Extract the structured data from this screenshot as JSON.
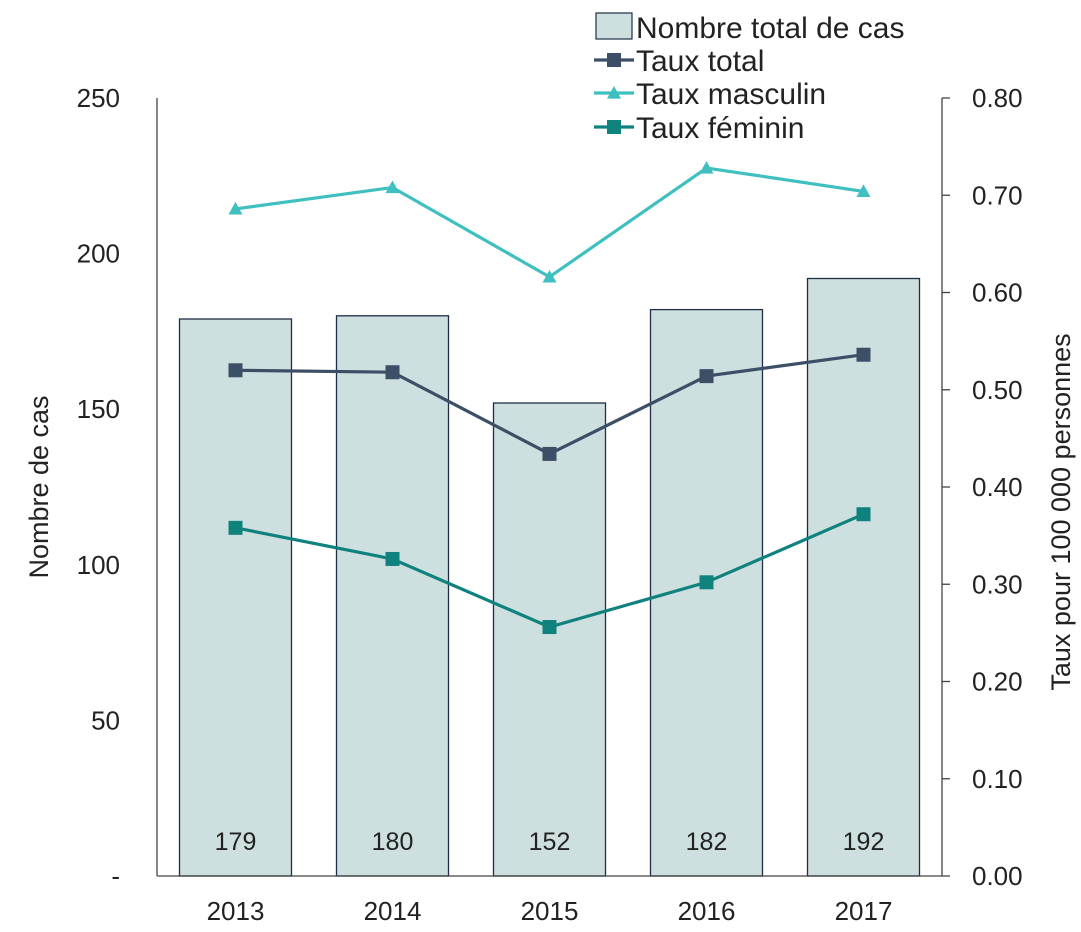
{
  "chart_data": {
    "type": "bar",
    "categories": [
      "2013",
      "2014",
      "2015",
      "2016",
      "2017"
    ],
    "bars": {
      "name": "Nombre total de cas",
      "values": [
        179,
        180,
        152,
        182,
        192
      ],
      "color": "#cde0df",
      "border": "#1f2d46"
    },
    "lines": [
      {
        "name": "Taux total",
        "values": [
          0.52,
          0.518,
          0.434,
          0.514,
          0.536
        ],
        "color": "#3d4f66",
        "marker": "square"
      },
      {
        "name": "Taux masculin",
        "values": [
          0.686,
          0.708,
          0.616,
          0.728,
          0.704
        ],
        "color": "#3fbfc0",
        "marker": "triangle"
      },
      {
        "name": "Taux féminin",
        "values": [
          0.358,
          0.326,
          0.256,
          0.302,
          0.372
        ],
        "color": "#10827e",
        "marker": "square"
      }
    ],
    "y_left": {
      "label": "Nombre de cas",
      "ylim": [
        0,
        250
      ],
      "ticks": [
        {
          "value": 0,
          "label": "-"
        },
        {
          "value": 50,
          "label": "50"
        },
        {
          "value": 100,
          "label": "100"
        },
        {
          "value": 150,
          "label": "150"
        },
        {
          "value": 200,
          "label": "200"
        },
        {
          "value": 250,
          "label": "250"
        }
      ]
    },
    "y_right": {
      "label": "Taux pour 100 000 personnes",
      "ylim": [
        0,
        0.8
      ],
      "ticks": [
        {
          "value": 0,
          "label": "0.00"
        },
        {
          "value": 0.1,
          "label": "0.10"
        },
        {
          "value": 0.2,
          "label": "0.20"
        },
        {
          "value": 0.3,
          "label": "0.30"
        },
        {
          "value": 0.4,
          "label": "0.40"
        },
        {
          "value": 0.5,
          "label": "0.50"
        },
        {
          "value": 0.6,
          "label": "0.60"
        },
        {
          "value": 0.7,
          "label": "0.70"
        },
        {
          "value": 0.8,
          "label": "0.80"
        }
      ]
    },
    "grid": false,
    "legend_position": "top-right",
    "axis_color": "#444444"
  }
}
